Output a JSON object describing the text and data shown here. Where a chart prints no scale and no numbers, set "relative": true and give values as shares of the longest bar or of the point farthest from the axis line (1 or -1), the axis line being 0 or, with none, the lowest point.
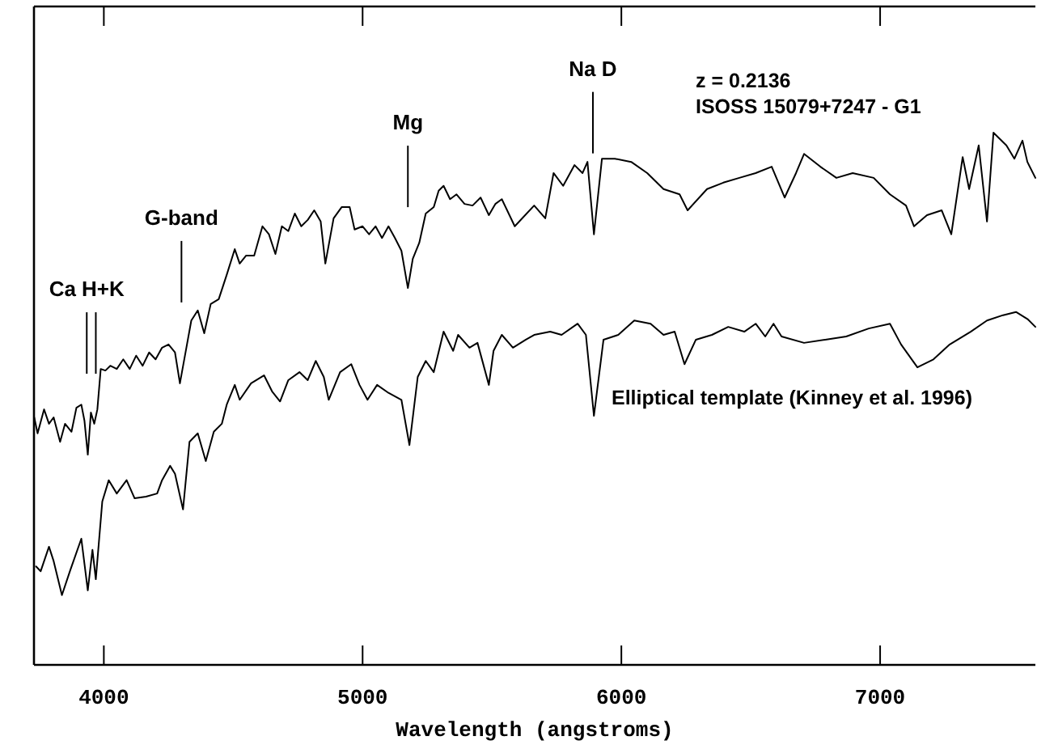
{
  "chart_data": {
    "type": "line",
    "relative": true,
    "xlabel": "Wavelength (angstroms)",
    "xlim": [
      3730,
      7600
    ],
    "xticks": [
      4000,
      5000,
      6000,
      7000
    ],
    "legend": false,
    "grid": false,
    "marker": "none",
    "line_style": "solid",
    "annotations": [
      "z = 0.2136"
    ],
    "ref_lines": [
      {
        "axis": "x",
        "value": 3934,
        "label": "Ca H+K",
        "color": "#000000",
        "line_style": "solid"
      },
      {
        "axis": "x",
        "value": 3969,
        "label": null,
        "color": "#000000",
        "line_style": "solid"
      },
      {
        "axis": "x",
        "value": 4300,
        "label": "G-band",
        "color": "#000000",
        "line_style": "solid"
      },
      {
        "axis": "x",
        "value": 5175,
        "label": "Mg",
        "color": "#000000",
        "line_style": "solid"
      },
      {
        "axis": "x",
        "value": 5890,
        "label": "Na D",
        "color": "#000000",
        "line_style": "solid"
      }
    ],
    "series": [
      {
        "name": "ISOSS 15079+7247 - G1",
        "color": "#000000",
        "x": [
          3731,
          3744,
          3769,
          3788,
          3806,
          3831,
          3850,
          3875,
          3894,
          3913,
          3925,
          3938,
          3950,
          3963,
          3975,
          3988,
          4006,
          4025,
          4050,
          4075,
          4100,
          4125,
          4150,
          4175,
          4200,
          4225,
          4250,
          4275,
          4294,
          4319,
          4338,
          4363,
          4388,
          4413,
          4444,
          4475,
          4506,
          4525,
          4550,
          4581,
          4613,
          4638,
          4663,
          4688,
          4713,
          4738,
          4763,
          4788,
          4813,
          4838,
          4856,
          4888,
          4919,
          4950,
          4969,
          5000,
          5025,
          5050,
          5075,
          5100,
          5125,
          5150,
          5175,
          5194,
          5219,
          5244,
          5275,
          5294,
          5313,
          5338,
          5363,
          5394,
          5425,
          5456,
          5488,
          5513,
          5538,
          5588,
          5663,
          5706,
          5738,
          5775,
          5819,
          5850,
          5869,
          5894,
          5925,
          5975,
          6038,
          6100,
          6163,
          6225,
          6256,
          6331,
          6394,
          6456,
          6519,
          6581,
          6631,
          6675,
          6706,
          6769,
          6831,
          6894,
          6975,
          7038,
          7100,
          7131,
          7181,
          7238,
          7275,
          7319,
          7344,
          7381,
          7413,
          7438,
          7488,
          7519,
          7550,
          7569,
          7600
        ],
        "values": [
          0.465,
          0.435,
          0.48,
          0.453,
          0.465,
          0.419,
          0.453,
          0.438,
          0.483,
          0.489,
          0.459,
          0.395,
          0.474,
          0.453,
          0.48,
          0.556,
          0.553,
          0.562,
          0.556,
          0.574,
          0.556,
          0.581,
          0.562,
          0.587,
          0.574,
          0.596,
          0.602,
          0.587,
          0.529,
          0.596,
          0.647,
          0.666,
          0.623,
          0.678,
          0.687,
          0.733,
          0.781,
          0.754,
          0.769,
          0.769,
          0.824,
          0.809,
          0.772,
          0.824,
          0.815,
          0.848,
          0.824,
          0.836,
          0.854,
          0.833,
          0.754,
          0.839,
          0.86,
          0.86,
          0.818,
          0.824,
          0.809,
          0.824,
          0.802,
          0.824,
          0.802,
          0.778,
          0.708,
          0.763,
          0.793,
          0.848,
          0.86,
          0.891,
          0.9,
          0.875,
          0.884,
          0.866,
          0.863,
          0.878,
          0.845,
          0.866,
          0.875,
          0.824,
          0.863,
          0.839,
          0.924,
          0.9,
          0.939,
          0.924,
          0.945,
          0.809,
          0.951,
          0.951,
          0.945,
          0.924,
          0.894,
          0.884,
          0.854,
          0.894,
          0.906,
          0.915,
          0.924,
          0.936,
          0.878,
          0.924,
          0.96,
          0.936,
          0.915,
          0.924,
          0.915,
          0.884,
          0.863,
          0.824,
          0.845,
          0.854,
          0.809,
          0.954,
          0.894,
          0.976,
          0.833,
          1,
          0.976,
          0.951,
          0.985,
          0.945,
          0.915
        ]
      },
      {
        "name": "Elliptical template (Kinney et al. 1996)",
        "color": "#000000",
        "x": [
          3738,
          3756,
          3788,
          3806,
          3838,
          3869,
          3913,
          3938,
          3956,
          3969,
          3994,
          4019,
          4050,
          4088,
          4119,
          4163,
          4206,
          4225,
          4256,
          4275,
          4306,
          4331,
          4363,
          4394,
          4425,
          4456,
          4475,
          4506,
          4525,
          4569,
          4619,
          4650,
          4681,
          4713,
          4756,
          4788,
          4819,
          4850,
          4869,
          4913,
          4956,
          4988,
          5019,
          5056,
          5100,
          5150,
          5181,
          5213,
          5244,
          5275,
          5313,
          5350,
          5369,
          5413,
          5444,
          5488,
          5506,
          5538,
          5581,
          5631,
          5663,
          5725,
          5769,
          5831,
          5863,
          5894,
          5931,
          5988,
          6050,
          6113,
          6163,
          6206,
          6244,
          6288,
          6350,
          6413,
          6475,
          6519,
          6556,
          6588,
          6619,
          6706,
          6788,
          6869,
          6956,
          7038,
          7081,
          7144,
          7206,
          7269,
          7350,
          7413,
          7475,
          7525,
          7569,
          7600
        ],
        "values": [
          0.185,
          0.176,
          0.222,
          0.195,
          0.131,
          0.176,
          0.237,
          0.14,
          0.216,
          0.161,
          0.307,
          0.347,
          0.322,
          0.347,
          0.313,
          0.316,
          0.322,
          0.347,
          0.374,
          0.359,
          0.292,
          0.419,
          0.435,
          0.383,
          0.438,
          0.453,
          0.489,
          0.526,
          0.498,
          0.529,
          0.544,
          0.514,
          0.495,
          0.535,
          0.55,
          0.535,
          0.571,
          0.541,
          0.498,
          0.55,
          0.565,
          0.526,
          0.498,
          0.526,
          0.511,
          0.498,
          0.413,
          0.541,
          0.571,
          0.55,
          0.626,
          0.59,
          0.62,
          0.596,
          0.605,
          0.526,
          0.59,
          0.62,
          0.596,
          0.611,
          0.62,
          0.626,
          0.62,
          0.641,
          0.62,
          0.468,
          0.611,
          0.62,
          0.647,
          0.641,
          0.62,
          0.626,
          0.565,
          0.611,
          0.62,
          0.635,
          0.626,
          0.641,
          0.617,
          0.641,
          0.617,
          0.605,
          0.611,
          0.617,
          0.632,
          0.641,
          0.602,
          0.559,
          0.574,
          0.602,
          0.626,
          0.647,
          0.657,
          0.663,
          0.65,
          0.635
        ]
      }
    ]
  }
}
